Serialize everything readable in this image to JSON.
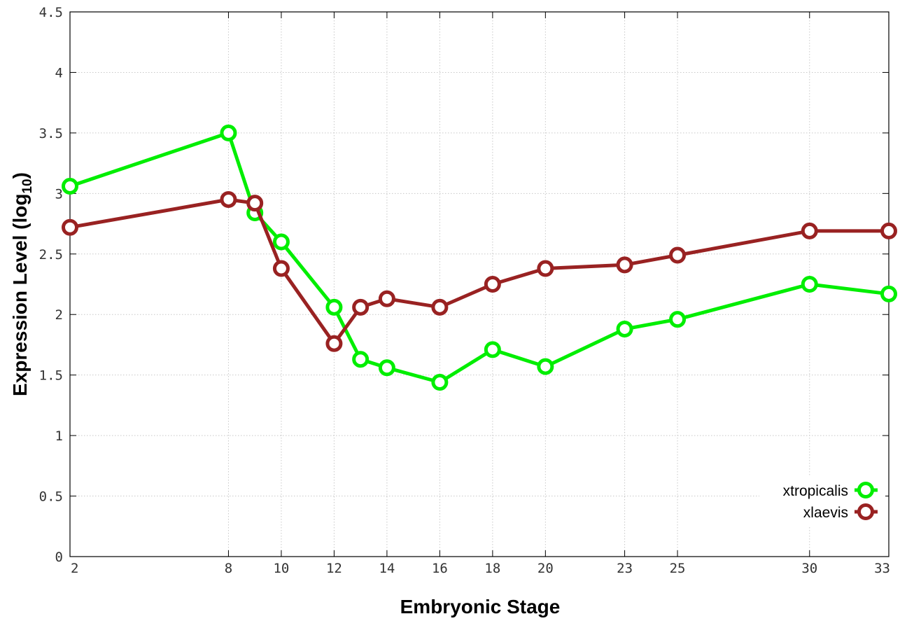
{
  "chart_data": {
    "type": "line",
    "xlabel": "Embryonic Stage",
    "ylabel_main": "Expression Level (log",
    "ylabel_sub": "10",
    "ylabel_end": ")",
    "xlim": [
      2,
      33
    ],
    "ylim": [
      0,
      4.5
    ],
    "x_ticks": [
      2,
      8,
      10,
      12,
      14,
      16,
      18,
      20,
      23,
      25,
      30,
      33
    ],
    "y_ticks": [
      0,
      0.5,
      1,
      1.5,
      2,
      2.5,
      3,
      3.5,
      4,
      4.5
    ],
    "y_tick_labels": [
      "0",
      "0.5",
      "1",
      "1.5",
      "2",
      "2.5",
      "3",
      "3.5",
      "4",
      "4.5"
    ],
    "x": [
      2,
      8,
      9,
      10,
      12,
      13,
      14,
      16,
      18,
      20,
      23,
      25,
      30,
      33
    ],
    "grid": true,
    "legend_position": "bottom-right",
    "series": [
      {
        "name": "xtropicalis",
        "color": "#00ee00",
        "values": [
          3.06,
          3.5,
          2.84,
          2.6,
          2.06,
          1.63,
          1.56,
          1.44,
          1.71,
          1.57,
          1.88,
          1.96,
          2.25,
          2.17
        ]
      },
      {
        "name": "xlaevis",
        "color": "#992222",
        "values": [
          2.72,
          2.95,
          2.92,
          2.38,
          1.76,
          2.06,
          2.13,
          2.06,
          2.25,
          2.38,
          2.41,
          2.49,
          2.69,
          2.69
        ]
      }
    ]
  }
}
